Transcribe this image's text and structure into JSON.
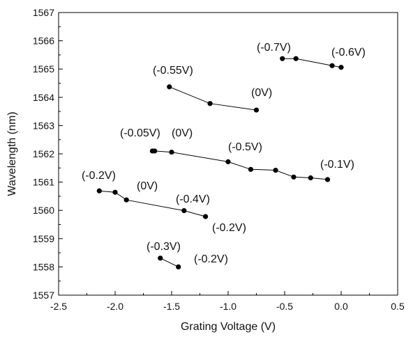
{
  "chart_data": {
    "type": "scatter",
    "xlabel": "Grating Voltage (V)",
    "ylabel": "Wavelength (nm)",
    "xlim": [
      -2.5,
      0.5
    ],
    "ylim": [
      1557,
      1567
    ],
    "x_ticks": [
      "-2.5",
      "-2.0",
      "-1.5",
      "-1.0",
      "-0.5",
      "0.0",
      "0.5"
    ],
    "y_ticks": [
      "1557",
      "1558",
      "1559",
      "1560",
      "1561",
      "1562",
      "1563",
      "1564",
      "1565",
      "1566",
      "1567"
    ],
    "grid": false,
    "legend": "none",
    "series": [
      {
        "x": [
          -0.52,
          -0.4,
          -0.08,
          0.0
        ],
        "y": [
          1565.37,
          1565.37,
          1565.12,
          1565.06
        ]
      },
      {
        "x": [
          -1.52,
          -1.16,
          -0.75
        ],
        "y": [
          1564.37,
          1563.78,
          1563.55
        ]
      },
      {
        "x": [
          -1.67,
          -1.65,
          -1.5,
          -1.0,
          -0.8,
          -0.58,
          -0.42,
          -0.27,
          -0.12
        ],
        "y": [
          1562.1,
          1562.1,
          1562.06,
          1561.72,
          1561.45,
          1561.42,
          1561.18,
          1561.15,
          1561.09
        ]
      },
      {
        "x": [
          -2.14,
          -2.0,
          -1.9,
          -1.39,
          -1.2
        ],
        "y": [
          1560.69,
          1560.64,
          1560.37,
          1559.99,
          1559.78
        ]
      },
      {
        "x": [
          -1.6,
          -1.44
        ],
        "y": [
          1558.31,
          1558.0
        ]
      }
    ],
    "annotations": [
      "(-0.7V)",
      "(-0.6V)",
      "(-0.55V)",
      "(0V)",
      "(-0.05V)",
      "(0V)",
      "(-0.5V)",
      "(-0.1V)",
      "(-0.2V)",
      "(0V)",
      "(-0.4V)",
      "(-0.2V)",
      "(-0.3V)",
      "(-0.2V)"
    ],
    "colors": {
      "axis": "#000000",
      "series": "#000000"
    }
  }
}
